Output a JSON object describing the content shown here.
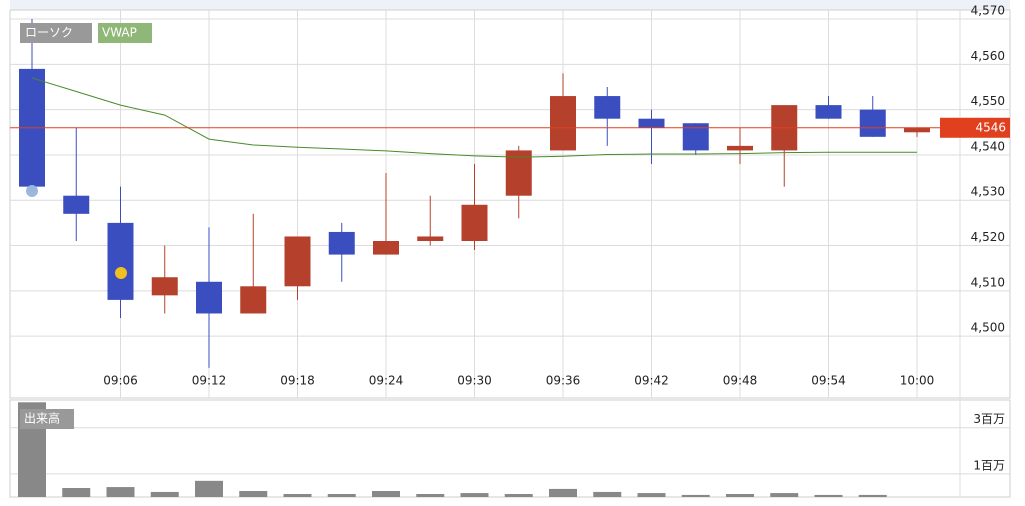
{
  "chart_data": [
    {
      "type": "candlestick",
      "categories": [
        null,
        null,
        "09:06",
        null,
        "09:12",
        null,
        "09:18",
        null,
        "09:24",
        null,
        "09:30",
        null,
        "09:36",
        null,
        "09:42",
        null,
        "09:48",
        null,
        "09:54",
        null,
        "10:00"
      ],
      "candles": {
        "name": "ローソク",
        "up_color": "#b5412c",
        "down_color": "#3a4ec0",
        "open": [
          4559,
          4531,
          4525,
          4509,
          4512,
          4505,
          4511,
          4523,
          4518,
          4521,
          4521,
          4531,
          4541,
          4553,
          4548,
          4547,
          4541,
          4541,
          4551,
          4550,
          4545
        ],
        "high": [
          4570,
          4546,
          4533,
          4520,
          4524,
          4527,
          4522,
          4525,
          4536,
          4531,
          4538,
          4542,
          4558,
          4555,
          4550,
          4547,
          4546,
          4551,
          4553,
          4553,
          4546
        ],
        "low": [
          4533,
          4521,
          4504,
          4505,
          4493,
          4505,
          4508,
          4512,
          4518,
          4520,
          4519,
          4526,
          4541,
          4542,
          4538,
          4540,
          4538,
          4533,
          4548,
          4544,
          4544
        ],
        "close": [
          4533,
          4527,
          4508,
          4513,
          4505,
          4511,
          4522,
          4518,
          4521,
          4522,
          4529,
          4541,
          4553,
          4548,
          4546,
          4541,
          4542,
          4551,
          4548,
          4544,
          4546
        ]
      },
      "series": [
        {
          "name": "VWAP",
          "color": "#4a8a2a",
          "values": [
            4557,
            4554,
            4551,
            4548.8,
            4543.5,
            4542.2,
            4541.7,
            4541.3,
            4540.9,
            4540.3,
            4539.8,
            4539.5,
            4539.7,
            4540.1,
            4540.2,
            4540.2,
            4540.3,
            4540.5,
            4540.6,
            4540.6,
            4540.6
          ]
        }
      ],
      "ylim": [
        4487,
        4572
      ],
      "yticks": [
        {
          "value": 4500,
          "label": "4,500"
        },
        {
          "value": 4510,
          "label": "4,510"
        },
        {
          "value": 4520,
          "label": "4,520"
        },
        {
          "value": 4530,
          "label": "4,530"
        },
        {
          "value": 4540,
          "label": "4,540"
        },
        {
          "value": 4550,
          "label": "4,550"
        },
        {
          "value": 4560,
          "label": "4,560"
        },
        {
          "value": 4570,
          "label": "4,570"
        }
      ],
      "last_price": {
        "value": 4546,
        "color": "#e0401e"
      },
      "grid": true
    },
    {
      "type": "bar",
      "series": [
        {
          "name": "出来高",
          "color": "#888888",
          "values": [
            4100000,
            390000,
            430000,
            220000,
            700000,
            260000,
            130000,
            130000,
            260000,
            130000,
            170000,
            130000,
            350000,
            220000,
            170000,
            90000,
            130000,
            170000,
            90000,
            90000,
            0
          ]
        }
      ],
      "ylim": [
        0,
        4200000
      ],
      "yticks": [
        {
          "value": 1000000,
          "label": "1百万"
        },
        {
          "value": 3000000,
          "label": "3百万"
        }
      ],
      "grid": true
    }
  ]
}
